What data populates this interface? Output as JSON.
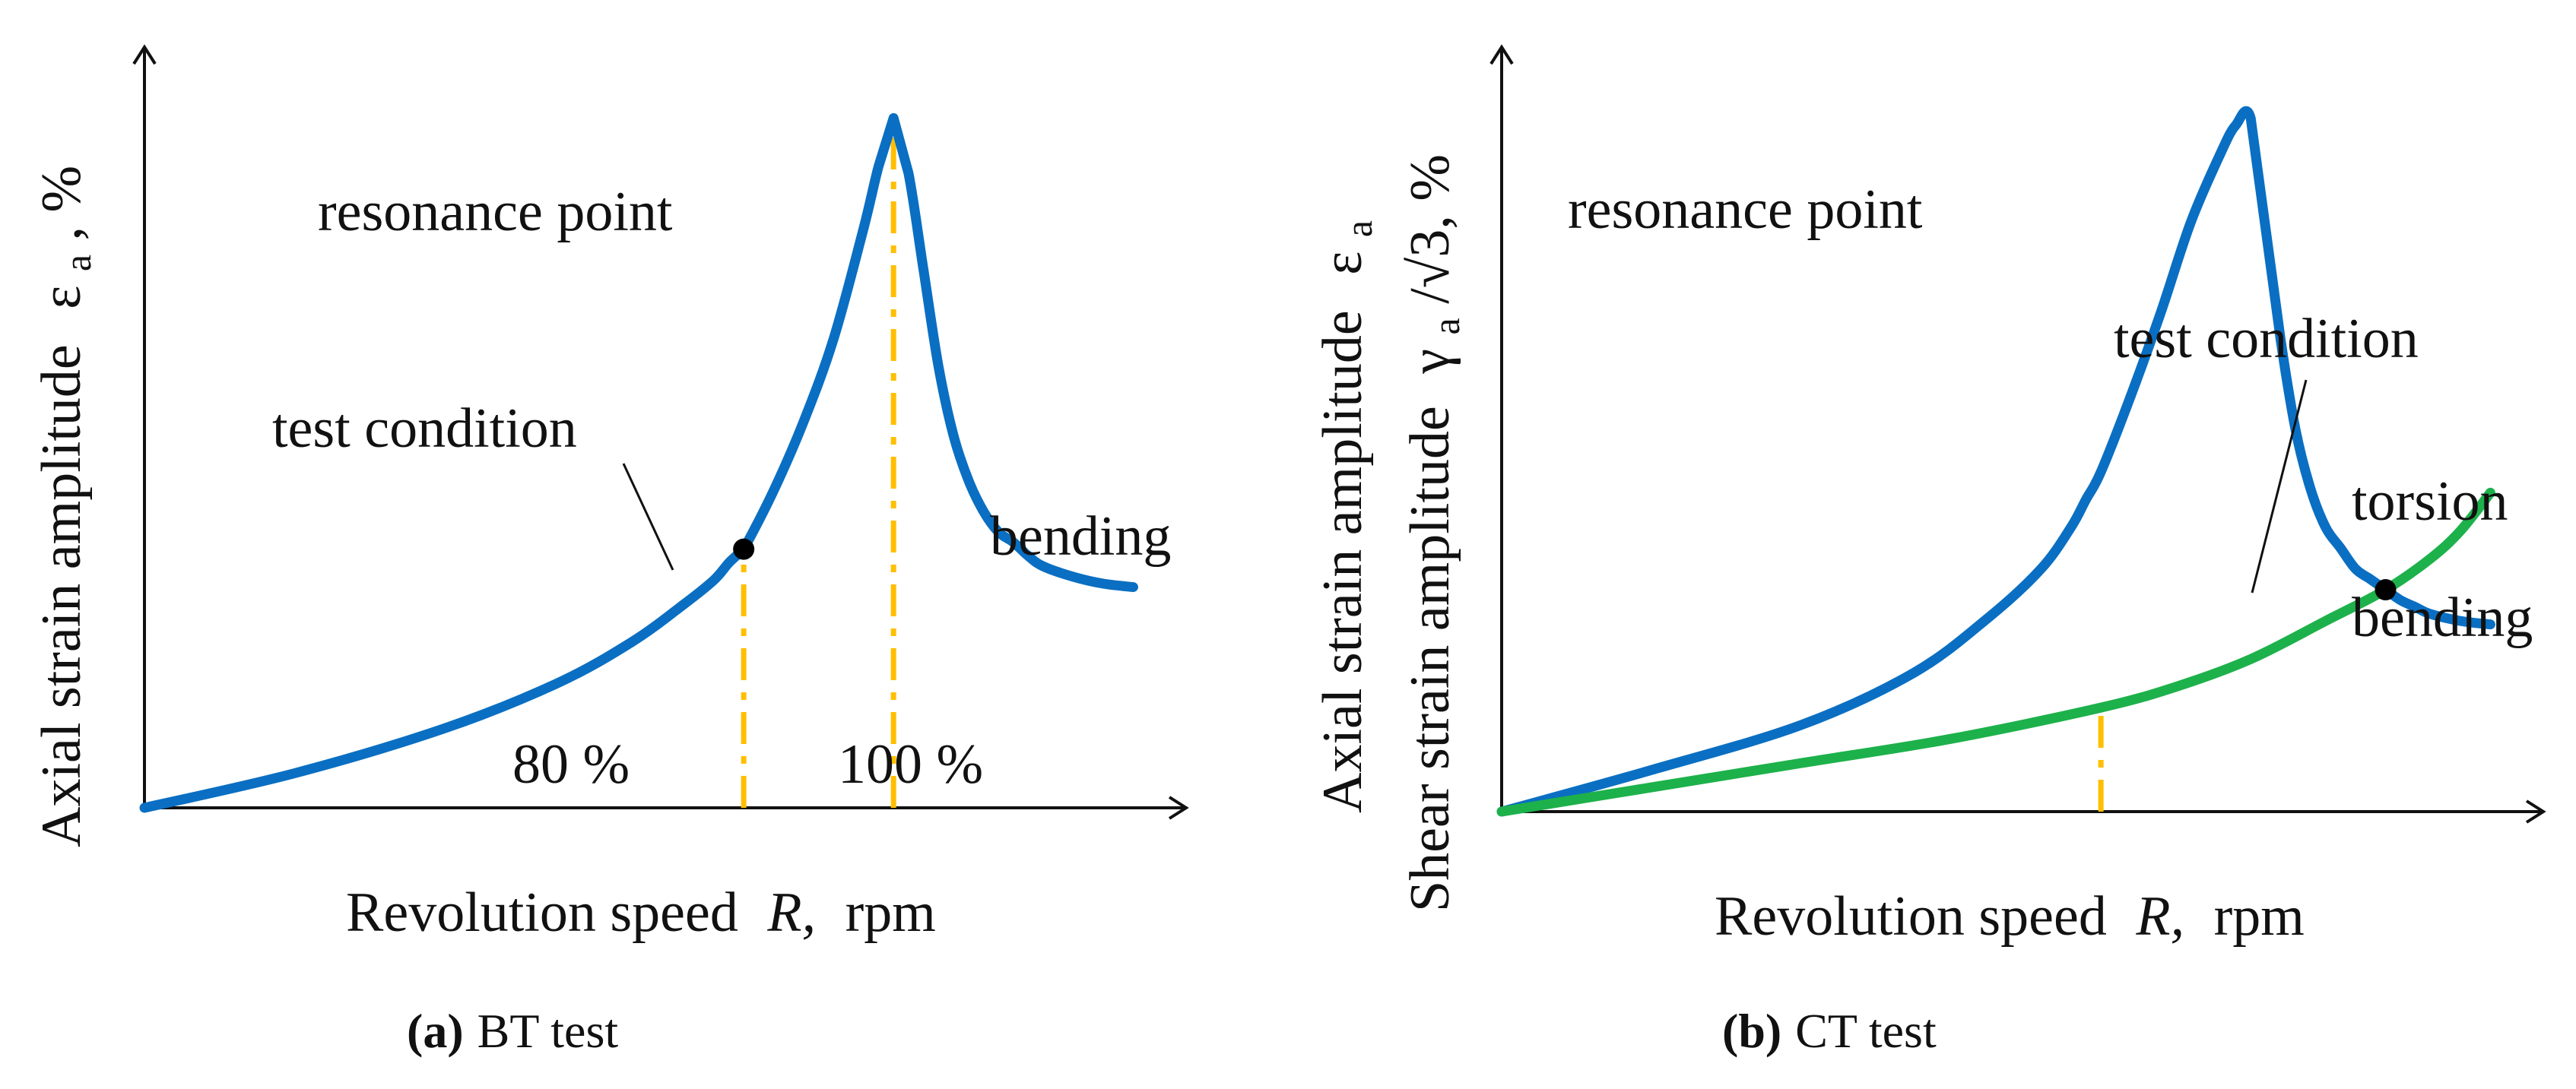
{
  "colors": {
    "bending": "#0a6fc2",
    "torsion": "#1db14b",
    "guide": "#ffbf00",
    "axis": "#111111"
  },
  "chart_data": [
    {
      "type": "line",
      "caption_tag": "(a)",
      "caption_text": "BT test",
      "xlabel": "Revolution speed",
      "xlabel_var": "R,",
      "xlabel_unit": "rpm",
      "ylabel": "Axial strain amplitude",
      "ylabel_sym": "ε",
      "ylabel_sub": "a",
      "ylabel_unit": ", %",
      "xlim": [
        0,
        135
      ],
      "ylim": [
        0,
        105
      ],
      "series": [
        {
          "name": "bending",
          "x": [
            0,
            20,
            40,
            55,
            65,
            72,
            76,
            78,
            79.5,
            80,
            84,
            88,
            92,
            96,
            98,
            100,
            102,
            104,
            106,
            108,
            110,
            112,
            114,
            116,
            118,
            120,
            124,
            128,
            132
          ],
          "y": [
            0,
            5,
            11.5,
            18,
            24,
            29.5,
            33,
            35.5,
            37,
            37.5,
            46,
            56,
            68,
            84,
            93,
            100,
            92,
            78,
            64,
            54,
            47.5,
            43,
            40,
            38.5,
            36.5,
            35,
            33.5,
            32.5,
            32
          ]
        }
      ],
      "annotations": [
        {
          "text": "resonance point",
          "x": 100,
          "y": 100
        },
        {
          "text": "test condition",
          "x": 80,
          "y": 37.5
        },
        {
          "text": "bending",
          "x": 132,
          "y": 32
        },
        {
          "text": "80 %",
          "x": 80,
          "y": 0
        },
        {
          "text": "100 %",
          "x": 100,
          "y": 0
        }
      ],
      "markers": [
        {
          "x": 80,
          "y": 37.5
        }
      ],
      "guides": [
        {
          "x": 80,
          "y": 37.5
        },
        {
          "x": 100,
          "y": 100
        }
      ]
    },
    {
      "type": "line",
      "caption_tag": "(b)",
      "caption_text": "CT test",
      "xlabel": "Revolution speed",
      "xlabel_var": "R,",
      "xlabel_unit": "rpm",
      "ylabel": "Axial strain amplitude",
      "ylabel_sym": "ε",
      "ylabel_sub": "a",
      "ylabel2": "Shear strain amplitude",
      "ylabel2_sym": "γ",
      "ylabel2_sub": "a",
      "ylabel2_tail": "/√3, %",
      "xlim": [
        0,
        135
      ],
      "ylim": [
        0,
        105
      ],
      "series": [
        {
          "name": "bending",
          "x": [
            0,
            20,
            40,
            55,
            65,
            72,
            76,
            78,
            80,
            84,
            88,
            92,
            96,
            98,
            100,
            102,
            104,
            106,
            108,
            110,
            112,
            114,
            116,
            118,
            120,
            122,
            124,
            128,
            132
          ],
          "y": [
            0,
            6,
            12.5,
            20,
            28,
            35,
            41,
            45,
            49,
            60,
            72,
            85,
            95,
            99,
            100,
            84,
            68,
            55,
            46.5,
            41,
            38,
            35,
            33.5,
            32,
            30.5,
            29.5,
            28.5,
            27.5,
            27
          ]
        },
        {
          "name": "torsion",
          "x": [
            0,
            20,
            40,
            60,
            80,
            90,
            100,
            110,
            118,
            124,
            128,
            132
          ],
          "y": [
            0,
            3.5,
            7,
            10.5,
            15,
            18,
            22,
            27.5,
            32,
            36.5,
            40.5,
            46
          ]
        }
      ],
      "annotations": [
        {
          "text": "resonance point",
          "x": 100,
          "y": 100
        },
        {
          "text": "test condition",
          "x": 118,
          "y": 32
        },
        {
          "text": "torsion",
          "x": 132,
          "y": 46
        },
        {
          "text": "bending",
          "x": 132,
          "y": 27
        }
      ],
      "markers": [
        {
          "x": 118,
          "y": 32
        }
      ],
      "guides": [
        {
          "x": 80,
          "y": 15.5
        }
      ]
    }
  ]
}
